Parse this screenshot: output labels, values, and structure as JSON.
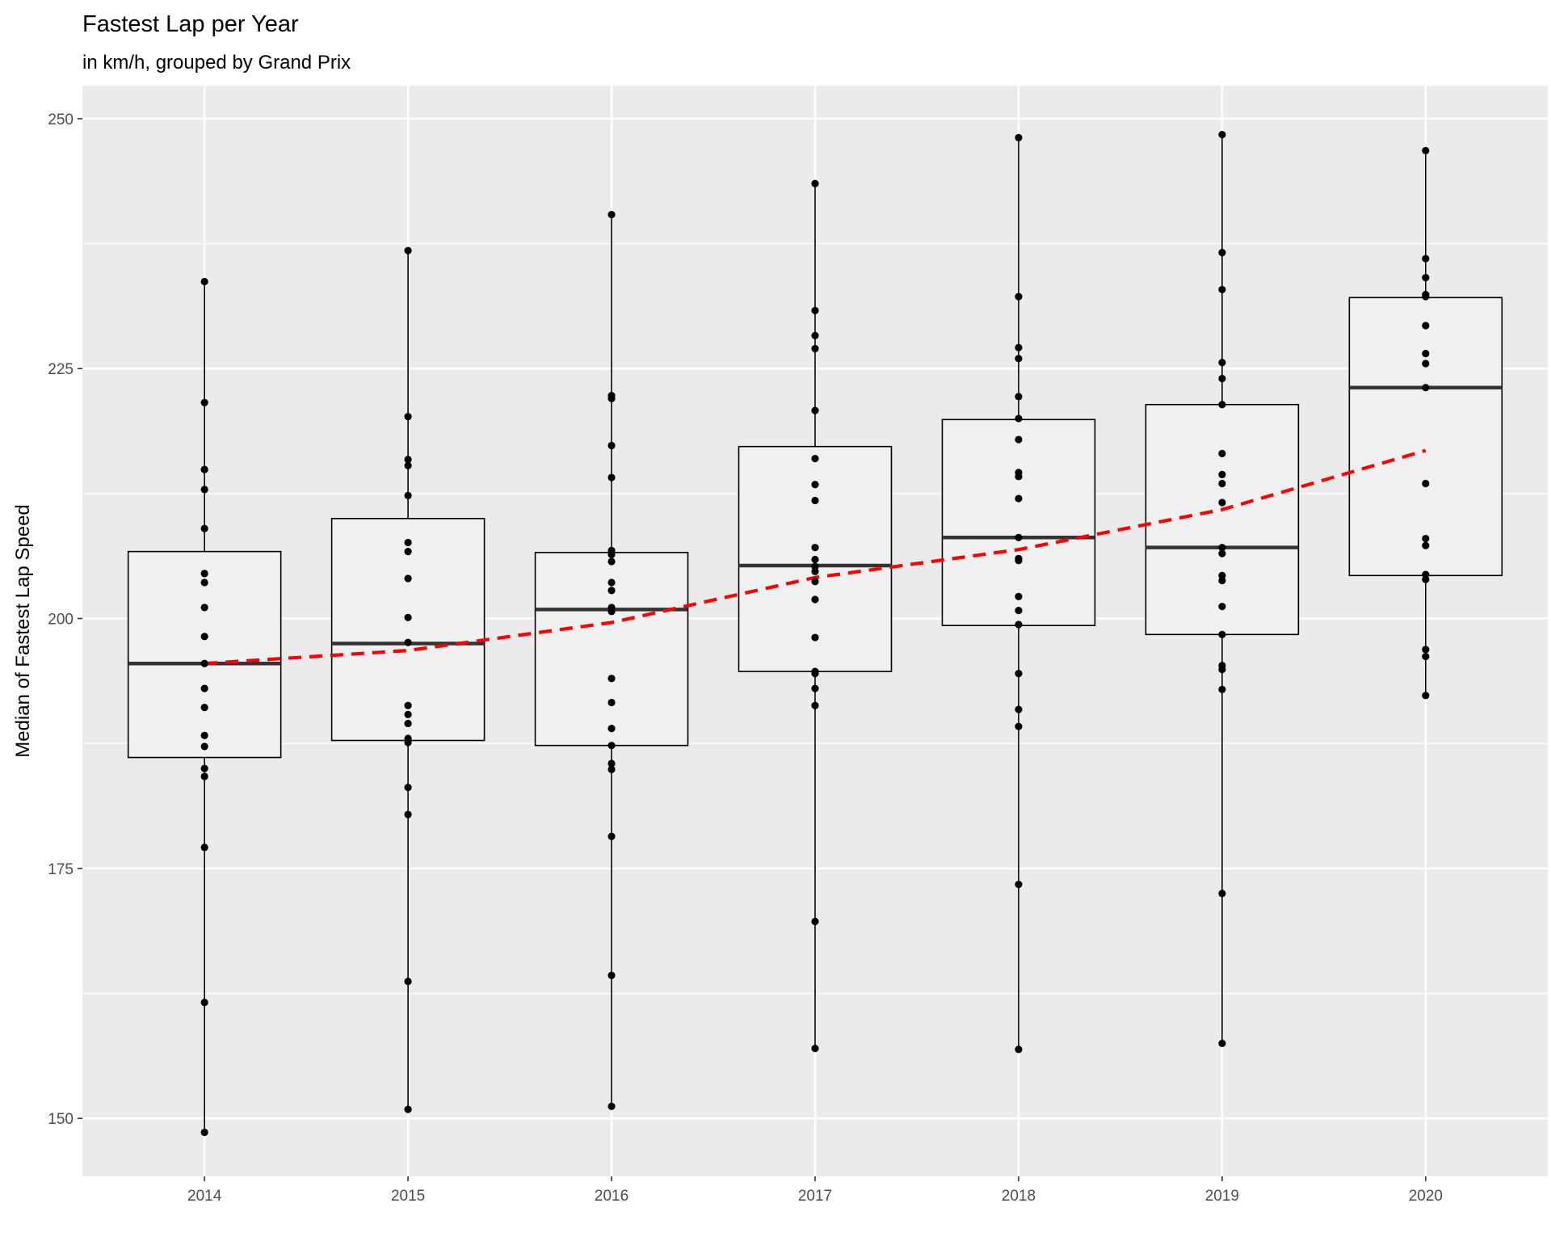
{
  "chart_data": {
    "type": "boxplot",
    "title": "Fastest Lap per Year",
    "subtitle": "in km/h, grouped by Grand Prix",
    "xlabel": "",
    "ylabel": "Median of Fastest Lap Speed",
    "categories": [
      "2014",
      "2015",
      "2016",
      "2017",
      "2018",
      "2019",
      "2020"
    ],
    "ylim": [
      144.2,
      253.3
    ],
    "yticks": [
      150,
      175,
      200,
      225,
      250
    ],
    "grid": true,
    "legend": "none",
    "colors": {
      "panel": "#ebebeb",
      "grid": "#ffffff",
      "box_fill": "#f0f0f0",
      "box_line": "#000000",
      "median_line": "#333333",
      "points": "#000000",
      "trend": "#ff0000"
    },
    "boxes": [
      {
        "x": "2014",
        "lower": 148.6,
        "q1": 186.1,
        "median": 195.5,
        "q3": 206.7,
        "upper": 233.7
      },
      {
        "x": "2015",
        "lower": 150.9,
        "q1": 187.8,
        "median": 197.5,
        "q3": 210.0,
        "upper": 236.8
      },
      {
        "x": "2016",
        "lower": 151.2,
        "q1": 187.3,
        "median": 200.9,
        "q3": 206.6,
        "upper": 240.4
      },
      {
        "x": "2017",
        "lower": 157.0,
        "q1": 194.7,
        "median": 205.3,
        "q3": 217.2,
        "upper": 243.5
      },
      {
        "x": "2018",
        "lower": 156.9,
        "q1": 199.3,
        "median": 208.1,
        "q3": 219.9,
        "upper": 248.1
      },
      {
        "x": "2019",
        "lower": 157.5,
        "q1": 198.4,
        "median": 207.1,
        "q3": 221.4,
        "upper": 248.4
      },
      {
        "x": "2020",
        "lower": 192.3,
        "q1": 204.3,
        "median": 223.1,
        "q3": 232.1,
        "upper": 246.8
      }
    ],
    "points": [
      {
        "x": "2014",
        "values": [
          233.7,
          221.6,
          214.9,
          212.9,
          209.0,
          204.5,
          203.6,
          201.1,
          198.2,
          195.5,
          193.0,
          191.1,
          188.3,
          187.2,
          185.0,
          184.2,
          177.1,
          161.6,
          148.6
        ]
      },
      {
        "x": "2015",
        "values": [
          236.8,
          220.2,
          215.9,
          215.3,
          212.3,
          207.6,
          206.7,
          204.0,
          200.1,
          197.6,
          191.3,
          190.4,
          189.5,
          188.0,
          187.6,
          183.1,
          180.4,
          163.7,
          150.9
        ]
      },
      {
        "x": "2016",
        "values": [
          240.4,
          222.3,
          222.0,
          217.3,
          214.1,
          206.8,
          206.4,
          205.7,
          203.6,
          202.8,
          201.1,
          200.7,
          194.0,
          191.6,
          189.0,
          187.3,
          185.5,
          184.9,
          178.2,
          164.3,
          151.2
        ]
      },
      {
        "x": "2017",
        "values": [
          243.5,
          230.8,
          228.3,
          227.0,
          220.8,
          216.0,
          213.4,
          211.8,
          207.1,
          205.9,
          205.2,
          204.7,
          203.7,
          201.9,
          198.1,
          194.7,
          194.5,
          193.0,
          191.3,
          169.7,
          157.0
        ]
      },
      {
        "x": "2018",
        "values": [
          248.1,
          232.2,
          227.1,
          226.0,
          222.2,
          220.0,
          217.9,
          214.6,
          214.2,
          212.0,
          208.1,
          206.0,
          205.8,
          202.2,
          200.8,
          199.4,
          194.5,
          190.9,
          189.2,
          173.4,
          156.9
        ]
      },
      {
        "x": "2019",
        "values": [
          248.4,
          236.6,
          232.9,
          225.6,
          224.0,
          221.4,
          216.5,
          214.4,
          213.5,
          211.6,
          207.1,
          206.5,
          204.3,
          203.8,
          201.2,
          198.4,
          195.3,
          194.9,
          192.9,
          172.5,
          157.5
        ]
      },
      {
        "x": "2020",
        "values": [
          246.8,
          236.0,
          234.1,
          232.4,
          232.2,
          229.3,
          226.5,
          225.5,
          223.1,
          213.5,
          208.0,
          207.3,
          204.4,
          203.9,
          196.9,
          196.2,
          192.3
        ]
      }
    ],
    "trend": {
      "style": "dashed",
      "x": [
        "2014",
        "2015",
        "2016",
        "2017",
        "2018",
        "2019",
        "2020"
      ],
      "y": [
        195.5,
        196.8,
        199.6,
        204.1,
        206.9,
        210.9,
        216.8
      ]
    }
  }
}
